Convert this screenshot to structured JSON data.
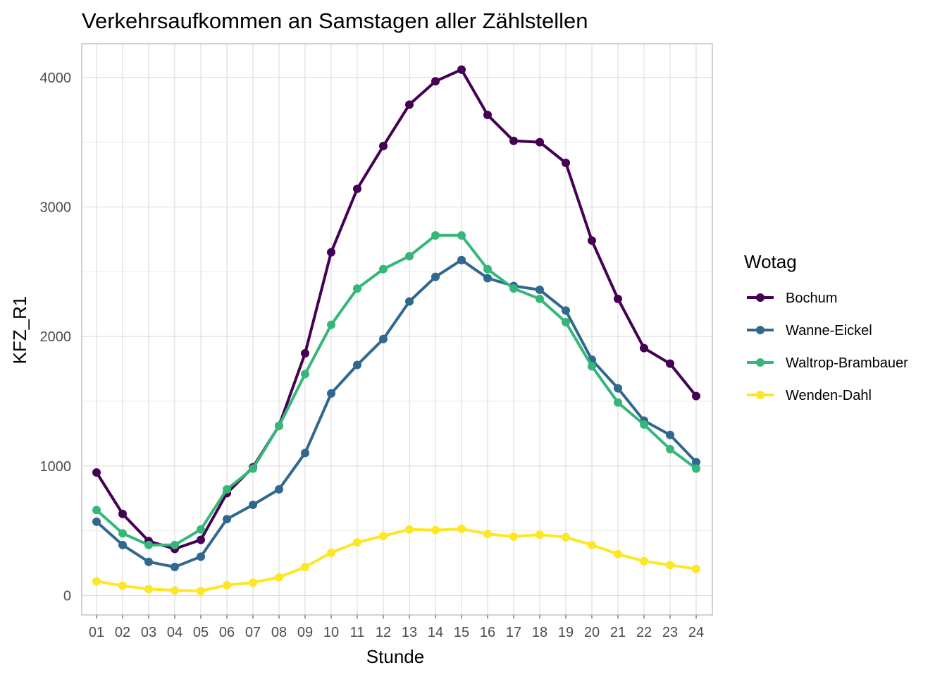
{
  "chart_data": {
    "type": "line",
    "title": "Verkehrsaufkommen an Samstagen aller Zählstellen",
    "xlabel": "Stunde",
    "ylabel": "KFZ_R1",
    "categories": [
      "01",
      "02",
      "03",
      "04",
      "05",
      "06",
      "07",
      "08",
      "09",
      "10",
      "11",
      "12",
      "13",
      "14",
      "15",
      "16",
      "17",
      "18",
      "19",
      "20",
      "21",
      "22",
      "23",
      "24"
    ],
    "ylim": [
      -150,
      4260
    ],
    "yticks": [
      0,
      1000,
      2000,
      3000,
      4000
    ],
    "ytick_labels": [
      "0",
      "1000",
      "2000",
      "3000",
      "4000"
    ],
    "grid": true,
    "legend": {
      "title": "Wotag",
      "position": "right"
    },
    "series": [
      {
        "name": "Bochum",
        "color": "#440154",
        "values": [
          950,
          630,
          420,
          360,
          430,
          790,
          990,
          1310,
          1870,
          2650,
          3140,
          3470,
          3790,
          3970,
          4060,
          3710,
          3510,
          3500,
          3340,
          2740,
          2290,
          1910,
          1790,
          1540
        ]
      },
      {
        "name": "Wanne-Eickel",
        "color": "#31688E",
        "values": [
          570,
          390,
          260,
          220,
          300,
          590,
          700,
          820,
          1100,
          1560,
          1780,
          1980,
          2270,
          2460,
          2590,
          2450,
          2390,
          2360,
          2200,
          1820,
          1600,
          1350,
          1240,
          1030
        ]
      },
      {
        "name": "Waltrop-Brambauer",
        "color": "#35B779",
        "values": [
          660,
          480,
          390,
          390,
          510,
          820,
          980,
          1310,
          1710,
          2090,
          2370,
          2520,
          2620,
          2780,
          2780,
          2520,
          2370,
          2290,
          2110,
          1770,
          1490,
          1320,
          1130,
          980
        ]
      },
      {
        "name": "Wenden-Dahl",
        "color": "#FDE725",
        "values": [
          110,
          75,
          50,
          40,
          35,
          80,
          100,
          140,
          220,
          330,
          410,
          460,
          510,
          505,
          515,
          475,
          455,
          470,
          450,
          390,
          320,
          265,
          235,
          205
        ]
      }
    ]
  }
}
